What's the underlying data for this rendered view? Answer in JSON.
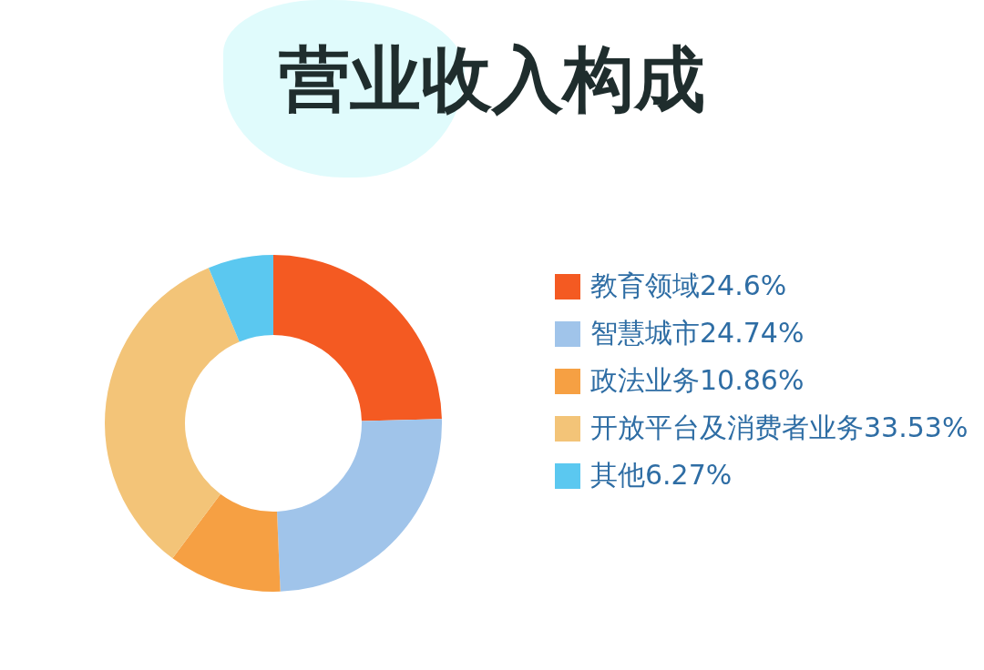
{
  "chart_data": {
    "type": "donut",
    "title": "营业收入构成",
    "categories": [
      "教育领域24.6%",
      "智慧城市24.74%",
      "政法业务10.86%",
      "开放平台及消费者业务33.53%",
      "其他6.27%"
    ],
    "values": [
      24.6,
      24.74,
      10.86,
      33.53,
      6.27
    ],
    "colors": [
      "#f45a22",
      "#a0c4ea",
      "#f6a043",
      "#f3c478",
      "#5bc8f0"
    ],
    "legend": "right"
  }
}
